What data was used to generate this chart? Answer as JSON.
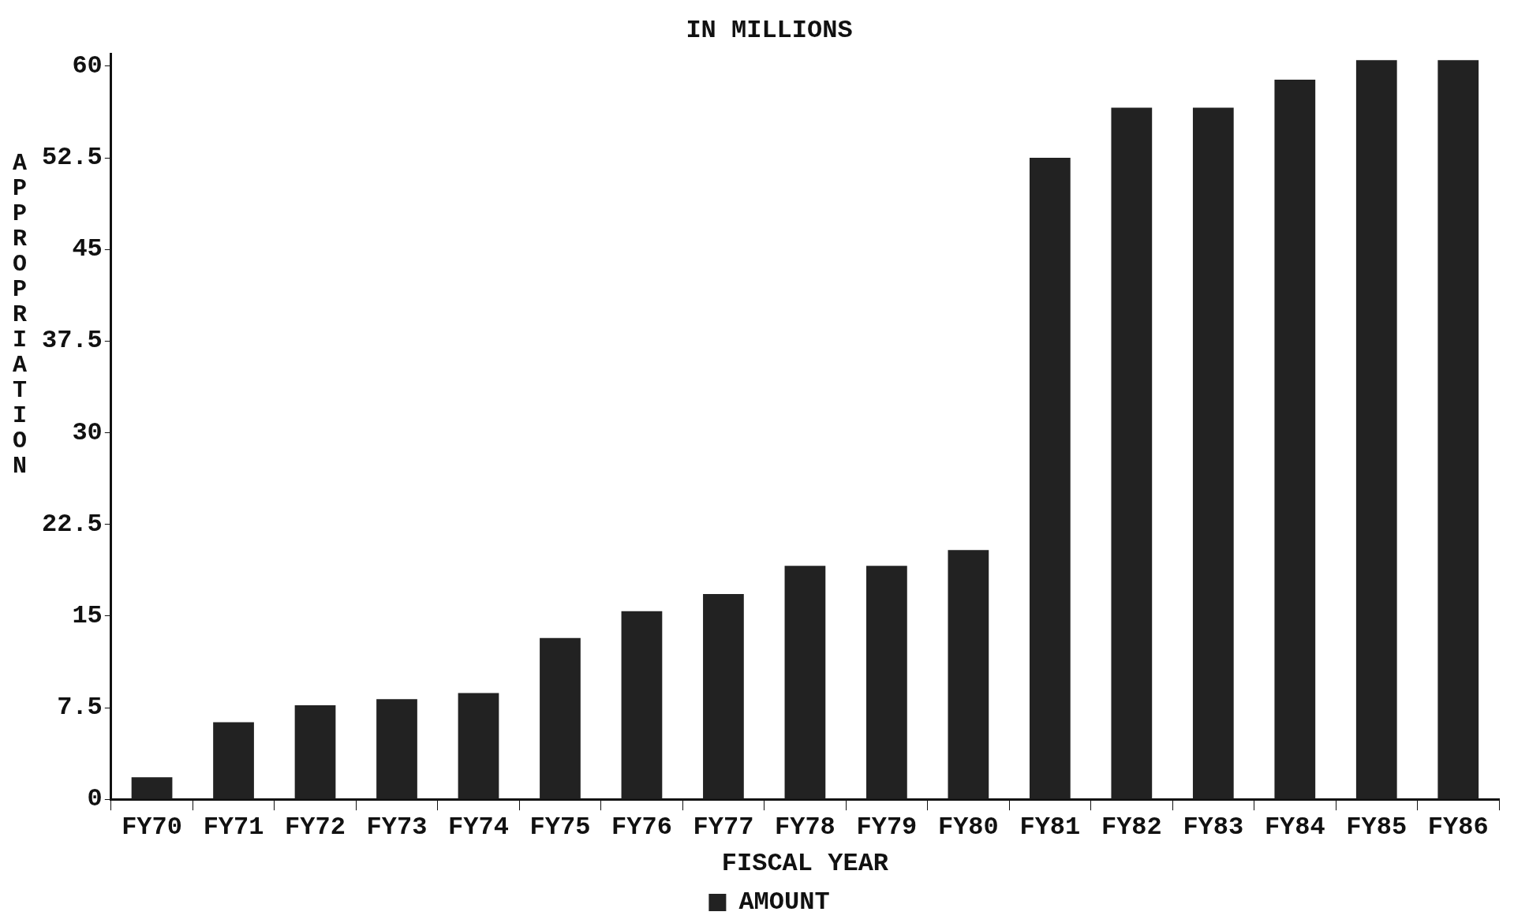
{
  "chart_data": {
    "type": "bar",
    "title": "IN MILLIONS",
    "xlabel": "FISCAL YEAR",
    "ylabel": "APPROPRIATION",
    "categories": [
      "FY70",
      "FY71",
      "FY72",
      "FY73",
      "FY74",
      "FY75",
      "FY76",
      "FY77",
      "FY78",
      "FY79",
      "FY80",
      "FY81",
      "FY82",
      "FY83",
      "FY84",
      "FY85",
      "FY86"
    ],
    "series": [
      {
        "name": "AMOUNT",
        "color": "#222222",
        "values": [
          1.8,
          6.3,
          7.7,
          8.2,
          8.7,
          13.2,
          15.4,
          16.8,
          19.1,
          19.1,
          20.4,
          52.5,
          56.6,
          56.6,
          58.9,
          60.5,
          60.5
        ]
      }
    ],
    "ylim": [
      0,
      61
    ],
    "yticks": [
      0,
      7.5,
      15,
      22.5,
      30,
      37.5,
      45,
      52.5,
      60
    ],
    "grid": false,
    "legend": "bottom"
  }
}
